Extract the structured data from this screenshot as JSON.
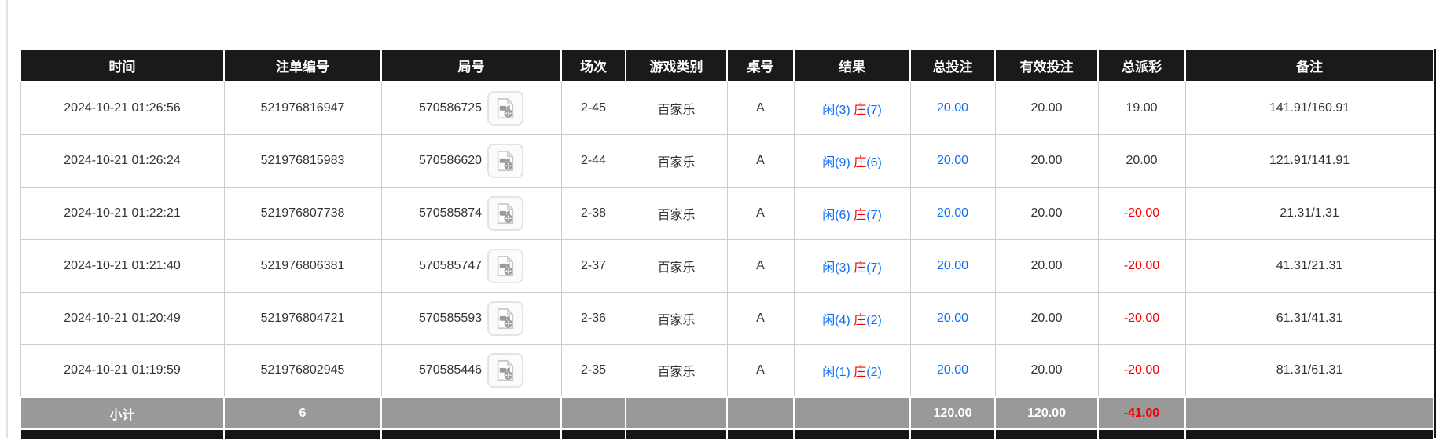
{
  "colors": {
    "header_bg": "#1a1a1a",
    "accent_blue": "#0d6efd",
    "negative_red": "#f20000",
    "subtotal_bg": "#999999"
  },
  "table": {
    "columns": [
      {
        "key": "time",
        "label": "时间"
      },
      {
        "key": "bet_id",
        "label": "注单编号"
      },
      {
        "key": "round_id",
        "label": "局号"
      },
      {
        "key": "session",
        "label": "场次"
      },
      {
        "key": "game_type",
        "label": "游戏类别"
      },
      {
        "key": "table_no",
        "label": "桌号"
      },
      {
        "key": "result",
        "label": "结果"
      },
      {
        "key": "total_bet",
        "label": "总投注"
      },
      {
        "key": "valid_bet",
        "label": "有效投注"
      },
      {
        "key": "total_payout",
        "label": "总派彩"
      },
      {
        "key": "remark",
        "label": "备注"
      }
    ],
    "rows": [
      {
        "time": "2024-10-21 01:26:56",
        "bet_id": "521976816947",
        "round_id": "570586725",
        "session": "2-45",
        "game_type": "百家乐",
        "table_no": "A",
        "result_player": "闲(3)",
        "result_banker": "庄",
        "result_banker_pts": "(7)",
        "total_bet": "20.00",
        "valid_bet": "20.00",
        "total_payout": "19.00",
        "remark": "141.91/160.91"
      },
      {
        "time": "2024-10-21 01:26:24",
        "bet_id": "521976815983",
        "round_id": "570586620",
        "session": "2-44",
        "game_type": "百家乐",
        "table_no": "A",
        "result_player": "闲(9)",
        "result_banker": "庄",
        "result_banker_pts": "(6)",
        "total_bet": "20.00",
        "valid_bet": "20.00",
        "total_payout": "20.00",
        "remark": "121.91/141.91"
      },
      {
        "time": "2024-10-21 01:22:21",
        "bet_id": "521976807738",
        "round_id": "570585874",
        "session": "2-38",
        "game_type": "百家乐",
        "table_no": "A",
        "result_player": "闲(6)",
        "result_banker": "庄",
        "result_banker_pts": "(7)",
        "total_bet": "20.00",
        "valid_bet": "20.00",
        "total_payout": "-20.00",
        "remark": "21.31/1.31"
      },
      {
        "time": "2024-10-21 01:21:40",
        "bet_id": "521976806381",
        "round_id": "570585747",
        "session": "2-37",
        "game_type": "百家乐",
        "table_no": "A",
        "result_player": "闲(3)",
        "result_banker": "庄",
        "result_banker_pts": "(7)",
        "total_bet": "20.00",
        "valid_bet": "20.00",
        "total_payout": "-20.00",
        "remark": "41.31/21.31"
      },
      {
        "time": "2024-10-21 01:20:49",
        "bet_id": "521976804721",
        "round_id": "570585593",
        "session": "2-36",
        "game_type": "百家乐",
        "table_no": "A",
        "result_player": "闲(4)",
        "result_banker": "庄",
        "result_banker_pts": "(2)",
        "total_bet": "20.00",
        "valid_bet": "20.00",
        "total_payout": "-20.00",
        "remark": "61.31/41.31"
      },
      {
        "time": "2024-10-21 01:19:59",
        "bet_id": "521976802945",
        "round_id": "570585446",
        "session": "2-35",
        "game_type": "百家乐",
        "table_no": "A",
        "result_player": "闲(1)",
        "result_banker": "庄",
        "result_banker_pts": "(2)",
        "total_bet": "20.00",
        "valid_bet": "20.00",
        "total_payout": "-20.00",
        "remark": "81.31/61.31"
      }
    ],
    "subtotal": {
      "label": "小计",
      "bet_count": "6",
      "total_bet": "120.00",
      "valid_bet": "120.00",
      "total_payout": "-41.00"
    }
  },
  "icons": {
    "video_replay": "video-file-icon"
  }
}
